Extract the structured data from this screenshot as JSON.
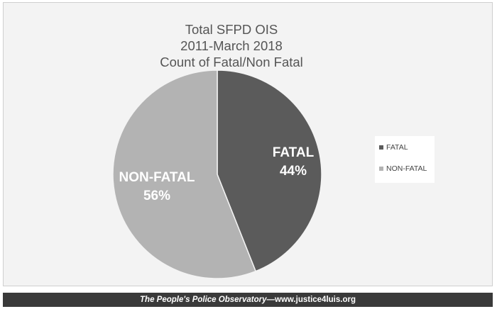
{
  "chart_data": {
    "type": "pie",
    "title": [
      "Total SFPD OIS",
      "2011-March 2018",
      "Count of Fatal/Non Fatal"
    ],
    "slices": [
      {
        "label": "FATAL",
        "value": 44,
        "display": "44%",
        "color": "#5b5b5b"
      },
      {
        "label": "NON-FATAL",
        "value": 56,
        "display": "56%",
        "color": "#b3b3b3"
      }
    ],
    "legend": {
      "position": "right",
      "entries": [
        "FATAL",
        "NON-FATAL"
      ]
    }
  },
  "footer": {
    "publication": "The People's Police Observatory",
    "separator": "—",
    "website": "www.justice4luis.org"
  }
}
